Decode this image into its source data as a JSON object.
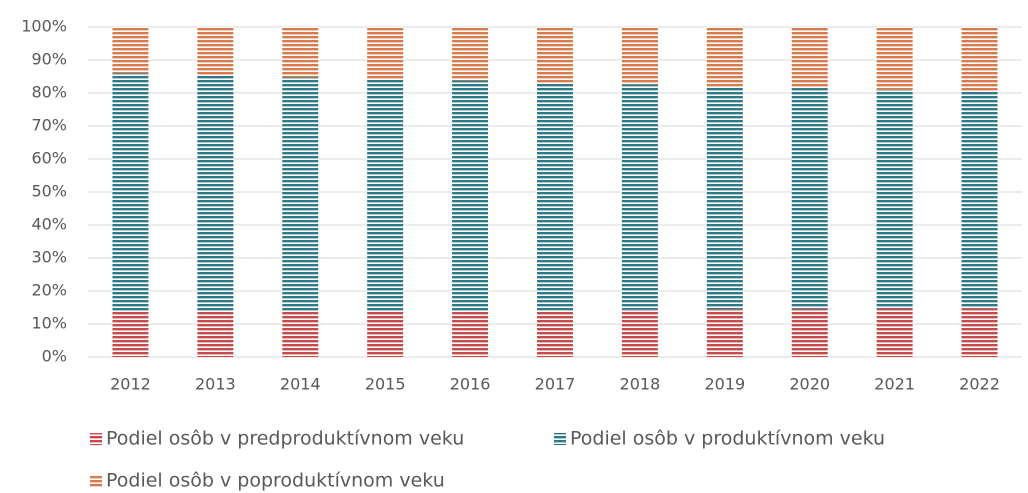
{
  "chart_data": {
    "type": "stacked_bar_100",
    "categories": [
      "2012",
      "2013",
      "2014",
      "2015",
      "2016",
      "2017",
      "2018",
      "2019",
      "2020",
      "2021",
      "2022"
    ],
    "series": [
      {
        "name": "Podiel osôb v predproduktívnom veku",
        "color": "#c84b4b",
        "values": [
          13.8,
          13.7,
          13.8,
          13.9,
          14,
          14.2,
          14.3,
          14.5,
          14.6,
          14.7,
          14.8
        ]
      },
      {
        "name": "Podiel osôb v produktívnom veku",
        "color": "#2f7a88",
        "values": [
          72.2,
          71.8,
          71,
          70.4,
          69.8,
          69,
          68.3,
          67.5,
          66.9,
          66.3,
          65.8
        ]
      },
      {
        "name": "Podiel osôb v poproduktívnom veku",
        "color": "#d97a4c",
        "values": [
          14,
          14.5,
          15.2,
          15.7,
          16.2,
          16.8,
          17.4,
          18,
          18.5,
          19,
          19.4
        ]
      }
    ],
    "ylim": [
      0,
      100
    ],
    "yticks": [
      {
        "value": 0,
        "label": "0%"
      },
      {
        "value": 10,
        "label": "10%"
      },
      {
        "value": 20,
        "label": "20%"
      },
      {
        "value": 30,
        "label": "30%"
      },
      {
        "value": 40,
        "label": "40%"
      },
      {
        "value": 50,
        "label": "50%"
      },
      {
        "value": 60,
        "label": "60%"
      },
      {
        "value": 70,
        "label": "70%"
      },
      {
        "value": 80,
        "label": "80%"
      },
      {
        "value": 90,
        "label": "90%"
      },
      {
        "value": 100,
        "label": "100%"
      }
    ],
    "grid": true
  }
}
